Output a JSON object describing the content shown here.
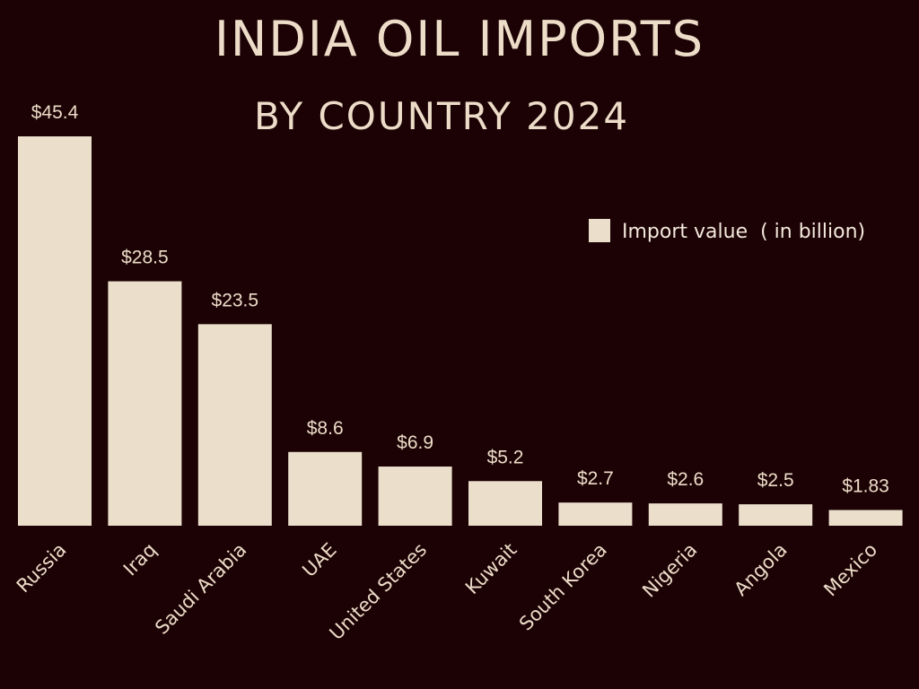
{
  "chart_data": {
    "type": "bar",
    "title": "INDIA OIL IMPORTS",
    "subtitle": "BY COUNTRY 2024",
    "categories": [
      "Russia",
      "Iraq",
      "Saudi Arabia",
      "UAE",
      "United States",
      "Kuwait",
      "South Korea",
      "Nigeria",
      "Angola",
      "Mexico"
    ],
    "values": [
      45.4,
      28.5,
      23.5,
      8.6,
      6.9,
      5.2,
      2.7,
      2.6,
      2.5,
      1.83
    ],
    "data_labels": [
      "$45.4",
      "$28.5",
      "$23.5",
      "$8.6",
      "$6.9",
      "$5.2",
      "$2.7",
      "$2.6",
      "$2.5",
      "$1.83"
    ],
    "series": [
      {
        "name": "Import value  ( in billion)",
        "values": [
          45.4,
          28.5,
          23.5,
          8.6,
          6.9,
          5.2,
          2.7,
          2.6,
          2.5,
          1.83
        ]
      }
    ],
    "legend_placement": "top-right",
    "grid": false,
    "ylim": [
      0,
      45.4
    ],
    "colors": {
      "background": "#1c0204",
      "bar": "#ebdfcc",
      "text": "#ecdcc8"
    }
  }
}
